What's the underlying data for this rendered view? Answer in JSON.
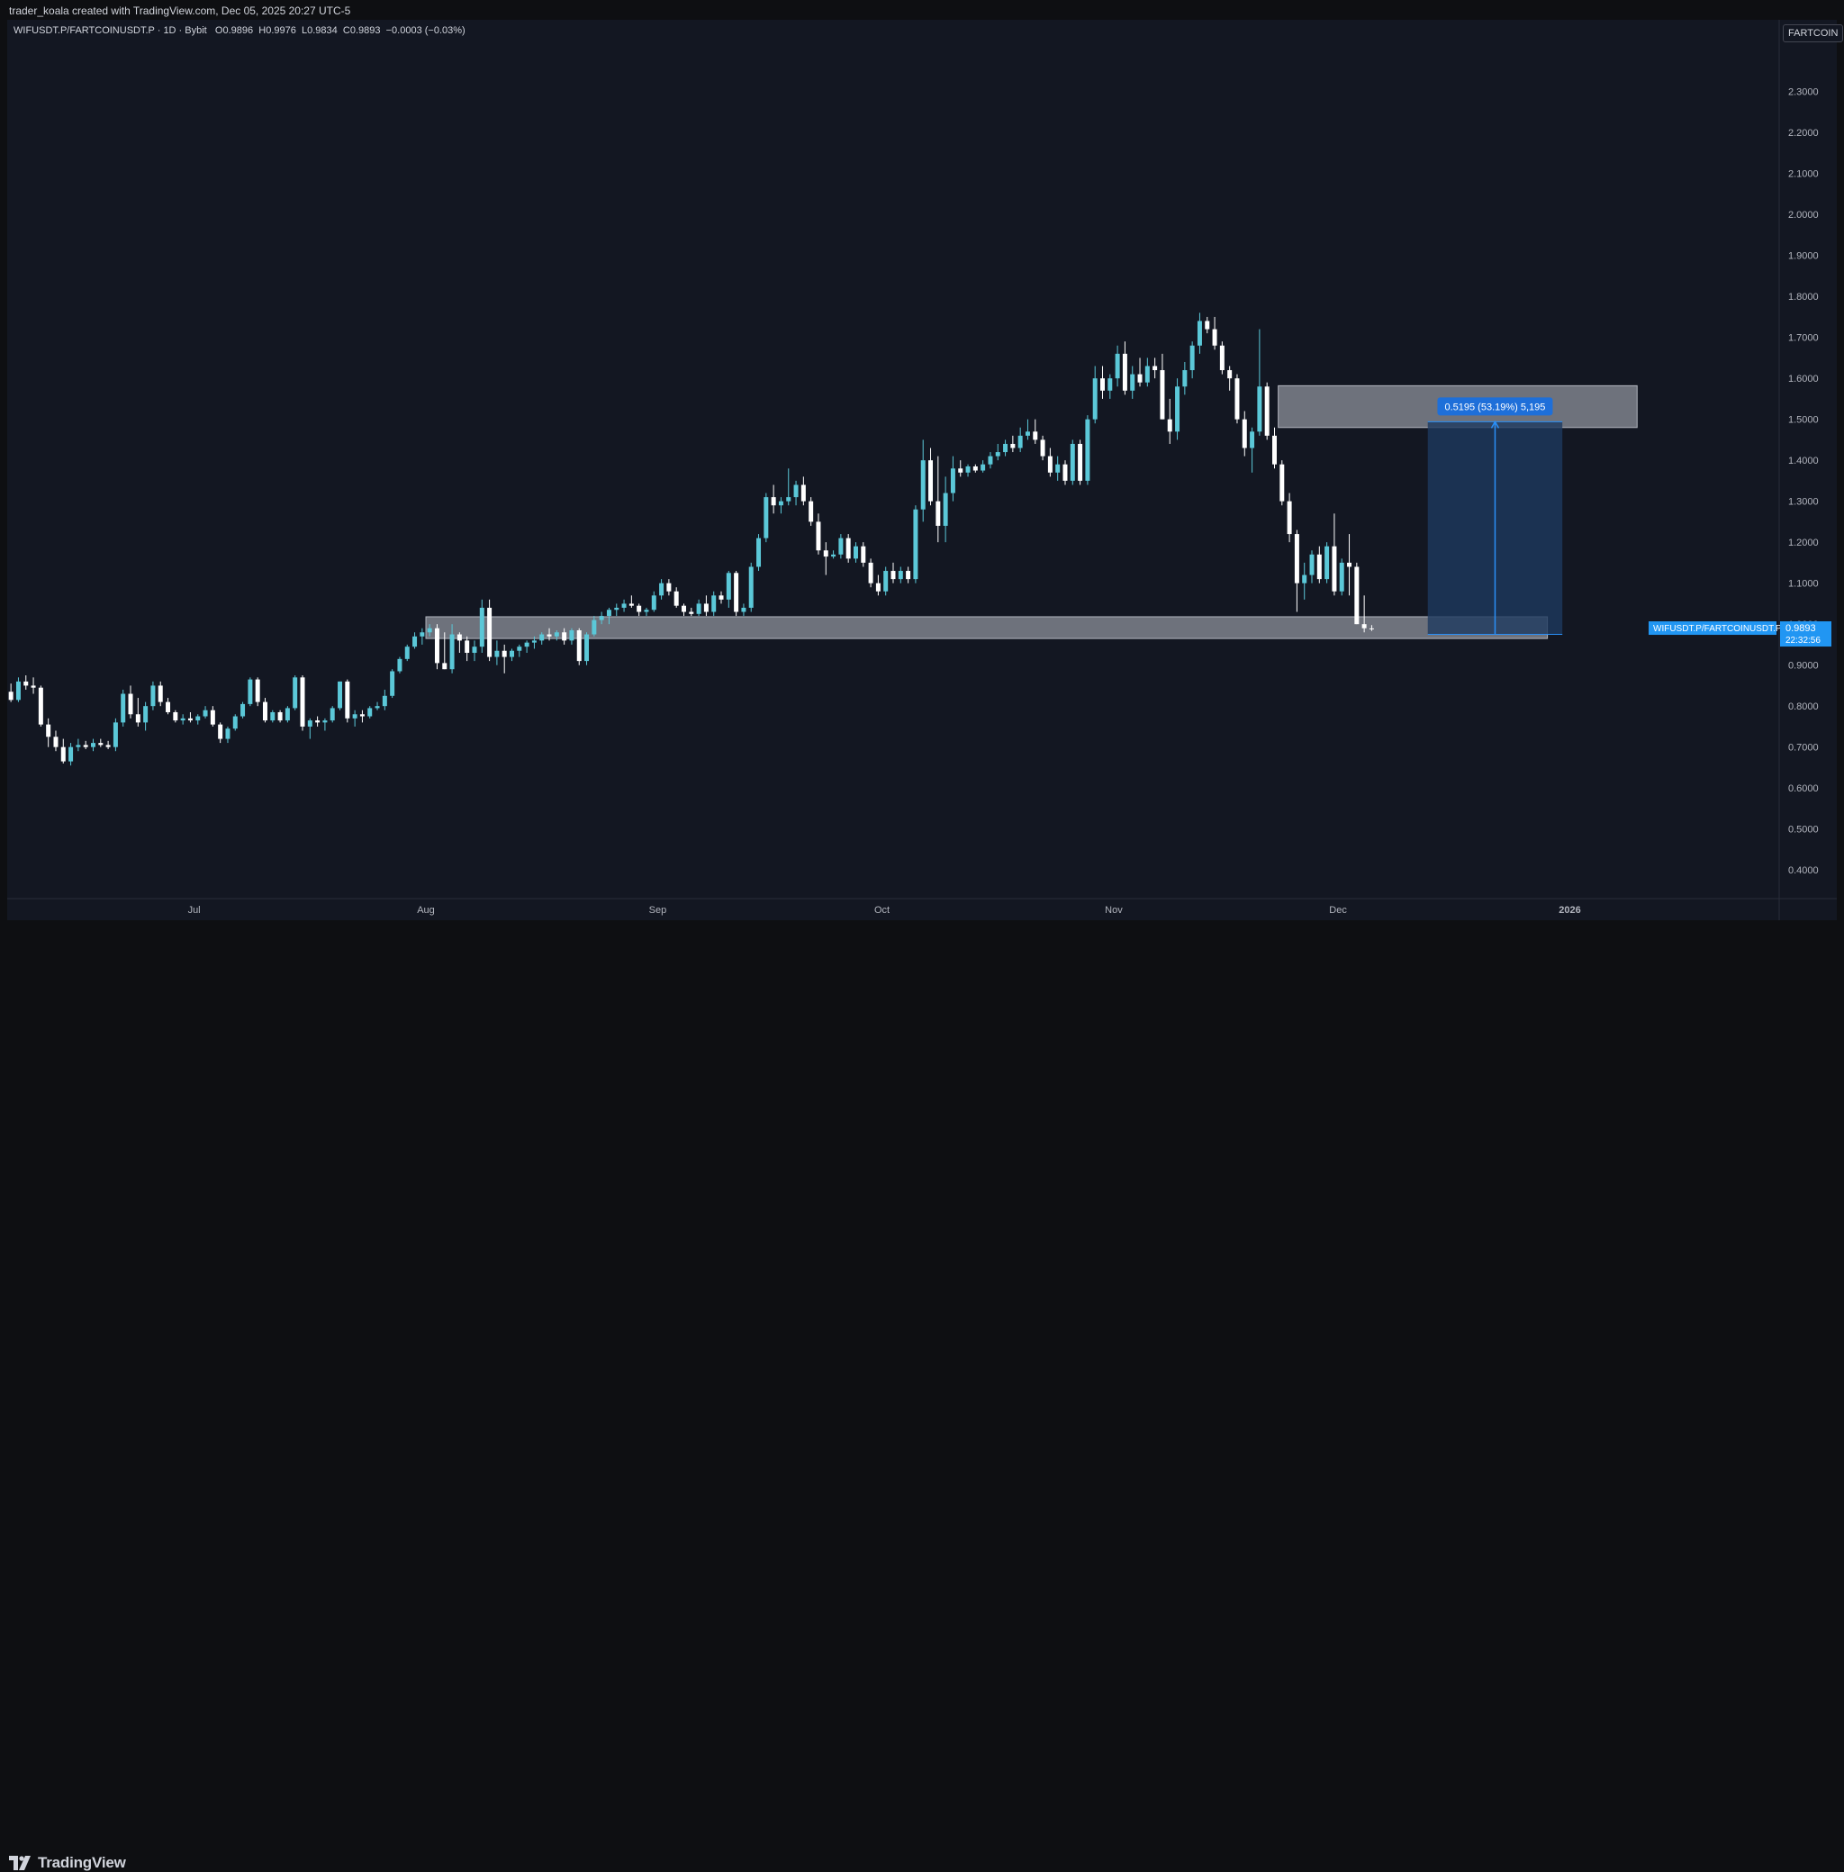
{
  "header": {
    "credit": "trader_koala created with TradingView.com, Dec 05, 2025 20:27 UTC-5"
  },
  "legend": {
    "symbol": "WIFUSDT.P/FARTCOINUSDT.P · 1D · Bybit",
    "open_label": "O",
    "open": "0.9896",
    "high_label": "H",
    "high": "0.9976",
    "low_label": "L",
    "low": "0.9834",
    "close_label": "C",
    "close": "0.9893",
    "change": "−0.0003 (−0.03%)"
  },
  "symbol_badge": "FARTCOIN",
  "footer": {
    "brand": "TradingView"
  },
  "colors": {
    "background": "#131722",
    "up_candle": "#5bc8d8",
    "down_candle": "#ffffff",
    "zone_fill": "#8e929b",
    "measure_fill": "#1e3a5f",
    "measure_line": "#2a8ff7",
    "price_label": "#2196f3"
  },
  "chart_data": {
    "type": "candlestick",
    "symbol": "WIFUSDT.P/FARTCOINUSDT.P",
    "interval": "1D",
    "exchange": "Bybit",
    "ylim": [
      0.33,
      2.44
    ],
    "y_ticks": [
      "2.3000",
      "2.2000",
      "2.1000",
      "2.0000",
      "1.9000",
      "1.8000",
      "1.7000",
      "1.6000",
      "1.5000",
      "1.4000",
      "1.3000",
      "1.2000",
      "1.1000",
      "1.0000",
      "0.9000",
      "0.8000",
      "0.7000",
      "0.6000",
      "0.5000",
      "0.4000"
    ],
    "x_ticks": [
      {
        "label": "Jul",
        "date": "2025-07-01"
      },
      {
        "label": "Aug",
        "date": "2025-08-01"
      },
      {
        "label": "Sep",
        "date": "2025-09-01"
      },
      {
        "label": "Oct",
        "date": "2025-10-01"
      },
      {
        "label": "Nov",
        "date": "2025-11-01"
      },
      {
        "label": "Dec",
        "date": "2025-12-01"
      },
      {
        "label": "2026",
        "date": "2026-01-01"
      }
    ],
    "x_range": [
      "2025-06-06",
      "2026-01-29"
    ],
    "start_date": "2025-06-06",
    "candles": [
      [
        0.835,
        0.855,
        0.81,
        0.815
      ],
      [
        0.815,
        0.87,
        0.81,
        0.86
      ],
      [
        0.86,
        0.875,
        0.84,
        0.85
      ],
      [
        0.85,
        0.87,
        0.83,
        0.845
      ],
      [
        0.845,
        0.85,
        0.75,
        0.755
      ],
      [
        0.755,
        0.77,
        0.7,
        0.725
      ],
      [
        0.725,
        0.74,
        0.69,
        0.7
      ],
      [
        0.7,
        0.72,
        0.66,
        0.665
      ],
      [
        0.665,
        0.71,
        0.655,
        0.7
      ],
      [
        0.7,
        0.72,
        0.69,
        0.705
      ],
      [
        0.705,
        0.715,
        0.695,
        0.7
      ],
      [
        0.7,
        0.72,
        0.69,
        0.71
      ],
      [
        0.71,
        0.72,
        0.7,
        0.705
      ],
      [
        0.705,
        0.715,
        0.695,
        0.7
      ],
      [
        0.7,
        0.77,
        0.69,
        0.76
      ],
      [
        0.76,
        0.84,
        0.75,
        0.83
      ],
      [
        0.83,
        0.85,
        0.77,
        0.78
      ],
      [
        0.78,
        0.82,
        0.75,
        0.76
      ],
      [
        0.76,
        0.81,
        0.74,
        0.8
      ],
      [
        0.8,
        0.86,
        0.79,
        0.85
      ],
      [
        0.85,
        0.86,
        0.8,
        0.81
      ],
      [
        0.81,
        0.82,
        0.78,
        0.785
      ],
      [
        0.785,
        0.79,
        0.76,
        0.765
      ],
      [
        0.765,
        0.78,
        0.755,
        0.77
      ],
      [
        0.77,
        0.785,
        0.76,
        0.765
      ],
      [
        0.765,
        0.78,
        0.755,
        0.775
      ],
      [
        0.775,
        0.8,
        0.77,
        0.79
      ],
      [
        0.79,
        0.8,
        0.75,
        0.755
      ],
      [
        0.755,
        0.76,
        0.71,
        0.72
      ],
      [
        0.72,
        0.75,
        0.71,
        0.745
      ],
      [
        0.745,
        0.78,
        0.74,
        0.775
      ],
      [
        0.775,
        0.81,
        0.77,
        0.805
      ],
      [
        0.805,
        0.87,
        0.8,
        0.865
      ],
      [
        0.865,
        0.87,
        0.8,
        0.81
      ],
      [
        0.81,
        0.82,
        0.76,
        0.765
      ],
      [
        0.765,
        0.79,
        0.76,
        0.785
      ],
      [
        0.785,
        0.79,
        0.76,
        0.765
      ],
      [
        0.765,
        0.8,
        0.76,
        0.795
      ],
      [
        0.795,
        0.875,
        0.79,
        0.87
      ],
      [
        0.87,
        0.875,
        0.74,
        0.75
      ],
      [
        0.75,
        0.77,
        0.72,
        0.765
      ],
      [
        0.765,
        0.775,
        0.75,
        0.76
      ],
      [
        0.76,
        0.77,
        0.74,
        0.765
      ],
      [
        0.765,
        0.8,
        0.76,
        0.795
      ],
      [
        0.795,
        0.86,
        0.79,
        0.86
      ],
      [
        0.86,
        0.865,
        0.76,
        0.77
      ],
      [
        0.77,
        0.79,
        0.75,
        0.78
      ],
      [
        0.78,
        0.79,
        0.76,
        0.775
      ],
      [
        0.775,
        0.8,
        0.77,
        0.795
      ],
      [
        0.795,
        0.81,
        0.79,
        0.8
      ],
      [
        0.8,
        0.84,
        0.79,
        0.825
      ],
      [
        0.825,
        0.89,
        0.82,
        0.885
      ],
      [
        0.885,
        0.92,
        0.88,
        0.915
      ],
      [
        0.915,
        0.95,
        0.91,
        0.945
      ],
      [
        0.945,
        0.98,
        0.94,
        0.97
      ],
      [
        0.97,
        0.99,
        0.95,
        0.98
      ],
      [
        0.98,
        1.0,
        0.97,
        0.99
      ],
      [
        0.99,
        1.0,
        0.89,
        0.905
      ],
      [
        0.905,
        0.98,
        0.89,
        0.89
      ],
      [
        0.89,
        1.0,
        0.88,
        0.975
      ],
      [
        0.975,
        0.98,
        0.93,
        0.96
      ],
      [
        0.96,
        0.97,
        0.91,
        0.93
      ],
      [
        0.93,
        0.96,
        0.91,
        0.945
      ],
      [
        0.945,
        1.06,
        0.93,
        1.04
      ],
      [
        1.04,
        1.06,
        0.91,
        0.92
      ],
      [
        0.92,
        0.96,
        0.9,
        0.935
      ],
      [
        0.935,
        0.95,
        0.88,
        0.92
      ],
      [
        0.92,
        0.94,
        0.91,
        0.935
      ],
      [
        0.935,
        0.95,
        0.92,
        0.945
      ],
      [
        0.945,
        0.96,
        0.93,
        0.955
      ],
      [
        0.955,
        0.97,
        0.94,
        0.96
      ],
      [
        0.96,
        0.98,
        0.95,
        0.975
      ],
      [
        0.975,
        0.99,
        0.96,
        0.97
      ],
      [
        0.97,
        0.985,
        0.96,
        0.98
      ],
      [
        0.98,
        0.99,
        0.95,
        0.96
      ],
      [
        0.96,
        0.99,
        0.95,
        0.985
      ],
      [
        0.985,
        0.99,
        0.9,
        0.91
      ],
      [
        0.91,
        0.98,
        0.9,
        0.975
      ],
      [
        0.975,
        1.02,
        0.97,
        1.01
      ],
      [
        1.01,
        1.03,
        1.0,
        1.02
      ],
      [
        1.02,
        1.04,
        1.0,
        1.035
      ],
      [
        1.035,
        1.05,
        1.02,
        1.04
      ],
      [
        1.04,
        1.06,
        1.03,
        1.05
      ],
      [
        1.05,
        1.07,
        1.04,
        1.045
      ],
      [
        1.045,
        1.05,
        1.02,
        1.03
      ],
      [
        1.03,
        1.04,
        1.02,
        1.035
      ],
      [
        1.035,
        1.08,
        1.03,
        1.07
      ],
      [
        1.07,
        1.11,
        1.06,
        1.1
      ],
      [
        1.1,
        1.11,
        1.07,
        1.08
      ],
      [
        1.08,
        1.09,
        1.04,
        1.045
      ],
      [
        1.045,
        1.05,
        1.02,
        1.03
      ],
      [
        1.03,
        1.04,
        1.02,
        1.025
      ],
      [
        1.025,
        1.06,
        1.02,
        1.05
      ],
      [
        1.05,
        1.07,
        1.02,
        1.03
      ],
      [
        1.03,
        1.08,
        1.02,
        1.07
      ],
      [
        1.07,
        1.08,
        1.05,
        1.06
      ],
      [
        1.06,
        1.13,
        1.04,
        1.125
      ],
      [
        1.125,
        1.13,
        1.02,
        1.03
      ],
      [
        1.03,
        1.05,
        1.02,
        1.04
      ],
      [
        1.04,
        1.15,
        1.03,
        1.14
      ],
      [
        1.14,
        1.22,
        1.13,
        1.21
      ],
      [
        1.21,
        1.32,
        1.2,
        1.31
      ],
      [
        1.31,
        1.34,
        1.27,
        1.29
      ],
      [
        1.29,
        1.31,
        1.27,
        1.3
      ],
      [
        1.3,
        1.38,
        1.29,
        1.31
      ],
      [
        1.31,
        1.35,
        1.29,
        1.34
      ],
      [
        1.34,
        1.36,
        1.29,
        1.3
      ],
      [
        1.3,
        1.31,
        1.24,
        1.25
      ],
      [
        1.25,
        1.27,
        1.17,
        1.18
      ],
      [
        1.18,
        1.2,
        1.12,
        1.165
      ],
      [
        1.165,
        1.18,
        1.16,
        1.17
      ],
      [
        1.17,
        1.22,
        1.16,
        1.21
      ],
      [
        1.21,
        1.22,
        1.15,
        1.16
      ],
      [
        1.16,
        1.2,
        1.15,
        1.19
      ],
      [
        1.19,
        1.2,
        1.14,
        1.15
      ],
      [
        1.15,
        1.16,
        1.09,
        1.1
      ],
      [
        1.1,
        1.12,
        1.07,
        1.08
      ],
      [
        1.08,
        1.14,
        1.07,
        1.13
      ],
      [
        1.13,
        1.15,
        1.1,
        1.11
      ],
      [
        1.11,
        1.14,
        1.1,
        1.13
      ],
      [
        1.13,
        1.14,
        1.1,
        1.11
      ],
      [
        1.11,
        1.29,
        1.1,
        1.28
      ],
      [
        1.28,
        1.45,
        1.25,
        1.4
      ],
      [
        1.4,
        1.43,
        1.29,
        1.3
      ],
      [
        1.3,
        1.41,
        1.2,
        1.24
      ],
      [
        1.24,
        1.36,
        1.2,
        1.32
      ],
      [
        1.32,
        1.41,
        1.3,
        1.38
      ],
      [
        1.38,
        1.4,
        1.36,
        1.37
      ],
      [
        1.37,
        1.39,
        1.36,
        1.385
      ],
      [
        1.385,
        1.39,
        1.37,
        1.375
      ],
      [
        1.375,
        1.4,
        1.37,
        1.39
      ],
      [
        1.39,
        1.42,
        1.38,
        1.41
      ],
      [
        1.41,
        1.44,
        1.4,
        1.42
      ],
      [
        1.42,
        1.45,
        1.41,
        1.44
      ],
      [
        1.44,
        1.46,
        1.42,
        1.43
      ],
      [
        1.43,
        1.48,
        1.42,
        1.46
      ],
      [
        1.46,
        1.5,
        1.45,
        1.47
      ],
      [
        1.47,
        1.5,
        1.44,
        1.45
      ],
      [
        1.45,
        1.46,
        1.4,
        1.41
      ],
      [
        1.41,
        1.43,
        1.36,
        1.37
      ],
      [
        1.37,
        1.41,
        1.35,
        1.39
      ],
      [
        1.39,
        1.4,
        1.34,
        1.35
      ],
      [
        1.35,
        1.45,
        1.34,
        1.44
      ],
      [
        1.44,
        1.45,
        1.34,
        1.35
      ],
      [
        1.35,
        1.51,
        1.34,
        1.5
      ],
      [
        1.5,
        1.63,
        1.49,
        1.6
      ],
      [
        1.6,
        1.63,
        1.55,
        1.57
      ],
      [
        1.57,
        1.61,
        1.55,
        1.6
      ],
      [
        1.6,
        1.68,
        1.58,
        1.66
      ],
      [
        1.66,
        1.69,
        1.56,
        1.57
      ],
      [
        1.57,
        1.63,
        1.55,
        1.61
      ],
      [
        1.61,
        1.65,
        1.58,
        1.59
      ],
      [
        1.59,
        1.65,
        1.58,
        1.63
      ],
      [
        1.63,
        1.65,
        1.6,
        1.62
      ],
      [
        1.62,
        1.66,
        1.5,
        1.5
      ],
      [
        1.5,
        1.55,
        1.44,
        1.47
      ],
      [
        1.47,
        1.6,
        1.45,
        1.58
      ],
      [
        1.58,
        1.64,
        1.56,
        1.62
      ],
      [
        1.62,
        1.69,
        1.6,
        1.68
      ],
      [
        1.68,
        1.76,
        1.66,
        1.74
      ],
      [
        1.74,
        1.75,
        1.71,
        1.72
      ],
      [
        1.72,
        1.75,
        1.67,
        1.68
      ],
      [
        1.68,
        1.69,
        1.61,
        1.62
      ],
      [
        1.62,
        1.63,
        1.57,
        1.6
      ],
      [
        1.6,
        1.61,
        1.49,
        1.5
      ],
      [
        1.5,
        1.52,
        1.41,
        1.43
      ],
      [
        1.43,
        1.48,
        1.37,
        1.47
      ],
      [
        1.47,
        1.72,
        1.46,
        1.58
      ],
      [
        1.58,
        1.59,
        1.45,
        1.46
      ],
      [
        1.46,
        1.48,
        1.38,
        1.39
      ],
      [
        1.39,
        1.4,
        1.29,
        1.3
      ],
      [
        1.3,
        1.32,
        1.2,
        1.22
      ],
      [
        1.22,
        1.23,
        1.03,
        1.1
      ],
      [
        1.1,
        1.15,
        1.06,
        1.12
      ],
      [
        1.12,
        1.18,
        1.1,
        1.17
      ],
      [
        1.17,
        1.19,
        1.1,
        1.11
      ],
      [
        1.11,
        1.2,
        1.1,
        1.19
      ],
      [
        1.19,
        1.27,
        1.07,
        1.08
      ],
      [
        1.08,
        1.16,
        1.07,
        1.15
      ],
      [
        1.15,
        1.22,
        1.07,
        1.14
      ],
      [
        1.14,
        1.15,
        1.0,
        1.0
      ],
      [
        1.0,
        1.07,
        0.98,
        0.99
      ],
      [
        0.9896,
        0.9976,
        0.9834,
        0.9893
      ]
    ],
    "zones": [
      {
        "name": "support zone",
        "y1": 0.965,
        "y2": 1.018,
        "from": "2025-08-01",
        "to": "2025-12-29"
      },
      {
        "name": "resistance zone",
        "y1": 1.48,
        "y2": 1.582,
        "from": "2025-11-23",
        "to": "2026-01-10"
      }
    ],
    "measure": {
      "label": "0.5195 (53.19%) 5,195",
      "y1": 0.975,
      "y2": 1.494,
      "from": "2025-12-13",
      "to": "2025-12-31"
    },
    "last_price": {
      "symbol_label": "WIFUSDT.P/FARTCOINUSDT.P",
      "value": "0.9893",
      "countdown": "22:32:56"
    }
  }
}
